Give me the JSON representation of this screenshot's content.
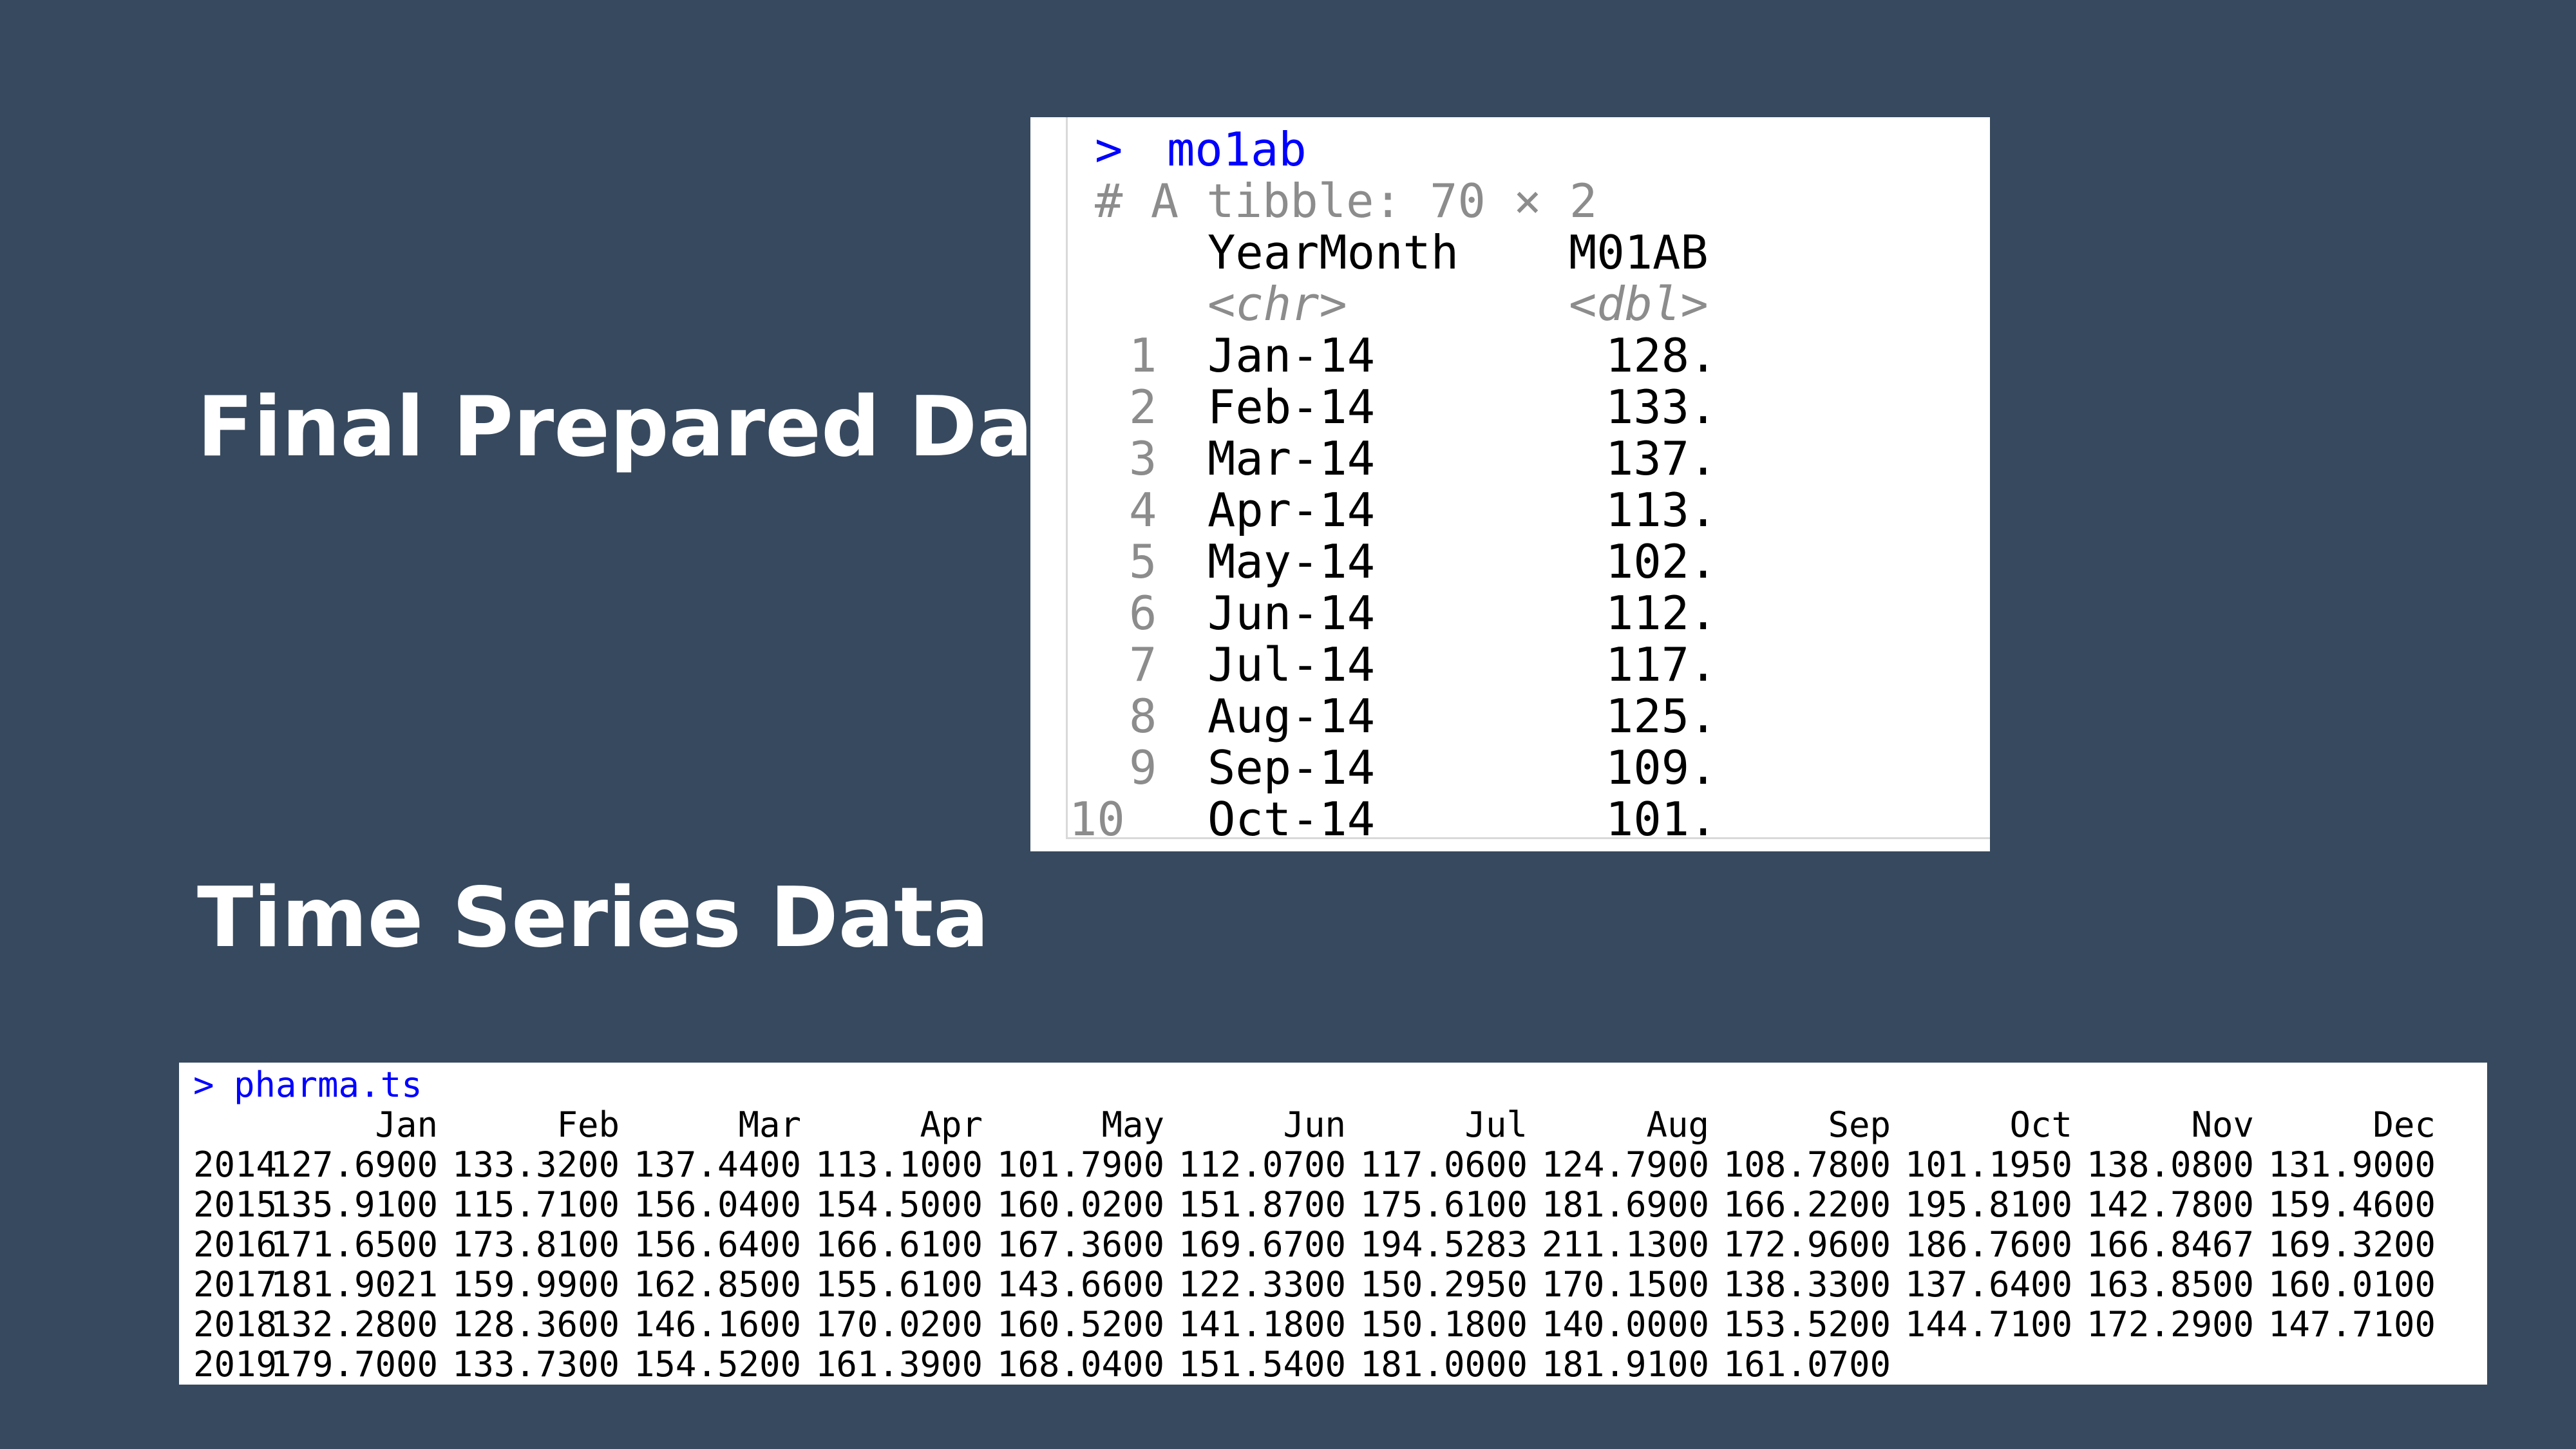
{
  "slide": {
    "heading_final": "Final Prepared Data",
    "heading_ts": "Time Series Data"
  },
  "tibble_console": {
    "prompt": ">",
    "command": "mo1ab",
    "summary": "# A tibble: 70 × 2",
    "columns": [
      "YearMonth",
      "M01AB"
    ],
    "types": [
      "<chr>",
      "<dbl>"
    ],
    "rows": [
      {
        "index": "1",
        "YearMonth": "Jan-14",
        "M01AB": "128."
      },
      {
        "index": "2",
        "YearMonth": "Feb-14",
        "M01AB": "133."
      },
      {
        "index": "3",
        "YearMonth": "Mar-14",
        "M01AB": "137."
      },
      {
        "index": "4",
        "YearMonth": "Apr-14",
        "M01AB": "113."
      },
      {
        "index": "5",
        "YearMonth": "May-14",
        "M01AB": "102."
      },
      {
        "index": "6",
        "YearMonth": "Jun-14",
        "M01AB": "112."
      },
      {
        "index": "7",
        "YearMonth": "Jul-14",
        "M01AB": "117."
      },
      {
        "index": "8",
        "YearMonth": "Aug-14",
        "M01AB": "125."
      },
      {
        "index": "9",
        "YearMonth": "Sep-14",
        "M01AB": "109."
      },
      {
        "index": "10",
        "YearMonth": "Oct-14",
        "M01AB": "101."
      }
    ]
  },
  "ts_console": {
    "prompt": ">",
    "command": "pharma.ts",
    "months": [
      "Jan",
      "Feb",
      "Mar",
      "Apr",
      "May",
      "Jun",
      "Jul",
      "Aug",
      "Sep",
      "Oct",
      "Nov",
      "Dec"
    ],
    "rows": [
      {
        "year": "2014",
        "values": [
          "127.6900",
          "133.3200",
          "137.4400",
          "113.1000",
          "101.7900",
          "112.0700",
          "117.0600",
          "124.7900",
          "108.7800",
          "101.1950",
          "138.0800",
          "131.9000"
        ]
      },
      {
        "year": "2015",
        "values": [
          "135.9100",
          "115.7100",
          "156.0400",
          "154.5000",
          "160.0200",
          "151.8700",
          "175.6100",
          "181.6900",
          "166.2200",
          "195.8100",
          "142.7800",
          "159.4600"
        ]
      },
      {
        "year": "2016",
        "values": [
          "171.6500",
          "173.8100",
          "156.6400",
          "166.6100",
          "167.3600",
          "169.6700",
          "194.5283",
          "211.1300",
          "172.9600",
          "186.7600",
          "166.8467",
          "169.3200"
        ]
      },
      {
        "year": "2017",
        "values": [
          "181.9021",
          "159.9900",
          "162.8500",
          "155.6100",
          "143.6600",
          "122.3300",
          "150.2950",
          "170.1500",
          "138.3300",
          "137.6400",
          "163.8500",
          "160.0100"
        ]
      },
      {
        "year": "2018",
        "values": [
          "132.2800",
          "128.3600",
          "146.1600",
          "170.0200",
          "160.5200",
          "141.1800",
          "150.1800",
          "140.0000",
          "153.5200",
          "144.7100",
          "172.2900",
          "147.7100"
        ]
      },
      {
        "year": "2019",
        "values": [
          "179.7000",
          "133.7300",
          "154.5200",
          "161.3900",
          "168.0400",
          "151.5400",
          "181.0000",
          "181.9100",
          "161.0700"
        ]
      }
    ]
  },
  "colors": {
    "background": "#37495e",
    "console_command": "#0000ff",
    "console_muted": "#8c8c8c"
  }
}
